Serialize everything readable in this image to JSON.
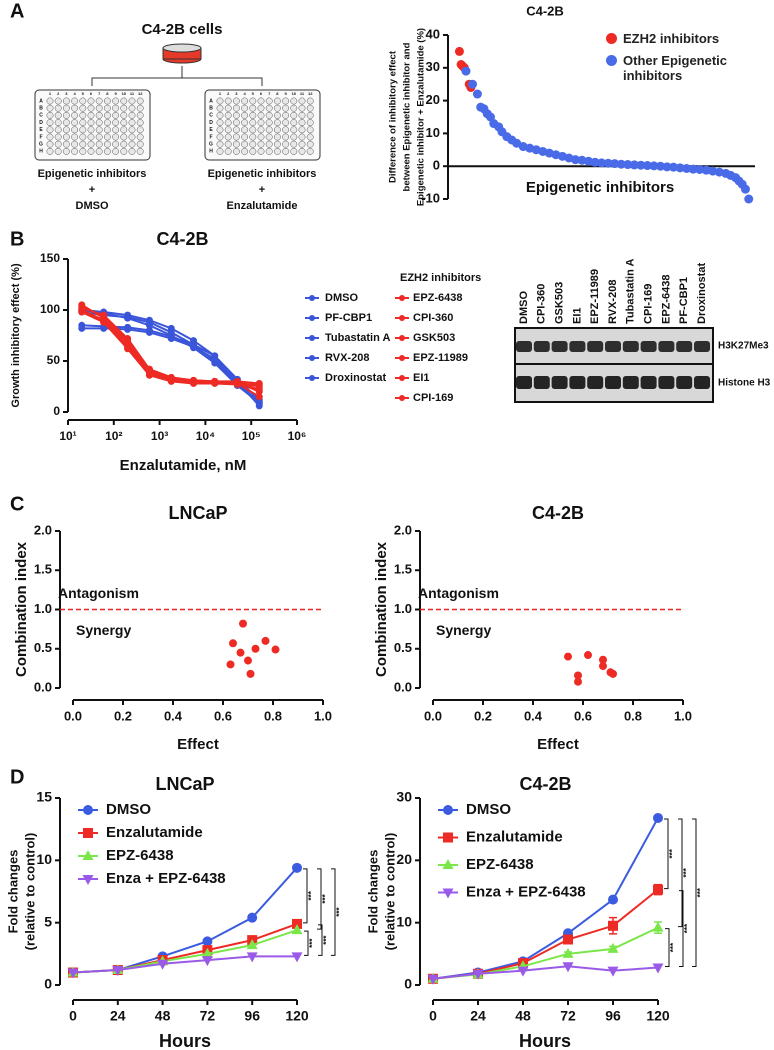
{
  "panel_labels": [
    "A",
    "B",
    "C",
    "D"
  ],
  "diagram": {
    "title": "C4-2B cells",
    "plate": {
      "rows": [
        "A",
        "B",
        "C",
        "D",
        "E",
        "F",
        "G",
        "H"
      ],
      "cols": [
        "1",
        "2",
        "3",
        "4",
        "5",
        "6",
        "7",
        "8",
        "9",
        "10",
        "11",
        "12"
      ]
    },
    "conditions": [
      {
        "line1": "Epigenetic inhibitors",
        "plus": "+",
        "line2": "DMSO"
      },
      {
        "line1": "Epigenetic inhibitors",
        "plus": "+",
        "line2": "Enzalutamide"
      }
    ]
  },
  "blot": {
    "lanes": [
      {
        "label": "DMSO",
        "color": "#2f3fd0"
      },
      {
        "label": "CPI-360",
        "color": "#e0262a"
      },
      {
        "label": "GSK503",
        "color": "#e0262a"
      },
      {
        "label": "EI1",
        "color": "#e0262a"
      },
      {
        "label": "EPZ-11989",
        "color": "#e0262a"
      },
      {
        "label": "RVX-208",
        "color": "#2f3fd0"
      },
      {
        "label": "Tubastatin A",
        "color": "#2f3fd0"
      },
      {
        "label": "CPI-169",
        "color": "#e0262a"
      },
      {
        "label": "EPZ-6438",
        "color": "#e0262a"
      },
      {
        "label": "PF-CBP1",
        "color": "#2f3fd0"
      },
      {
        "label": "Droxinostat",
        "color": "#2f3fd0"
      }
    ],
    "bands": [
      "H3K27Me3",
      "Histone H3"
    ]
  },
  "chart_data": [
    {
      "type": "scatter",
      "title": "C4-2B",
      "ylabel": [
        "Difference of inhibitory effect",
        "between Epigenetic inhibitor and",
        "Epigenetic inhibitor + Enzalutamide (%)"
      ],
      "xlabel": "Epigenetic inhibitors",
      "xlim": [
        -6,
        180
      ],
      "ylim": [
        -10,
        40
      ],
      "yticks": [
        -10,
        0,
        10,
        20,
        30,
        40
      ],
      "series": [
        {
          "name": "EZH2 inhibitors",
          "color": "#ee2a24",
          "x": [
            1,
            2,
            3,
            4,
            7,
            8
          ],
          "values": [
            35,
            31,
            30.5,
            30,
            25,
            24
          ]
        },
        {
          "name": "Other Epigenetic inhibitors",
          "color": "#4a6be8",
          "x": [
            5,
            9,
            12,
            14,
            16,
            18,
            20,
            22,
            25,
            27,
            30,
            33,
            36,
            40,
            44,
            48,
            52,
            56,
            60,
            64,
            68,
            72,
            76,
            80,
            84,
            88,
            92,
            96,
            100,
            104,
            108,
            112,
            116,
            120,
            124,
            128,
            132,
            136,
            140,
            144,
            148,
            152,
            156,
            160,
            164,
            167,
            170,
            172,
            174,
            176,
            178
          ],
          "values": [
            29,
            25,
            22,
            18,
            17.5,
            16,
            15,
            13,
            12,
            10.5,
            9,
            8,
            7,
            6,
            5.5,
            5,
            4.5,
            4,
            3.5,
            3,
            2.5,
            2,
            1.8,
            1.5,
            1.2,
            1,
            0.9,
            0.8,
            0.6,
            0.5,
            0.4,
            0.3,
            0.2,
            0.1,
            0,
            -0.2,
            -0.3,
            -0.5,
            -0.7,
            -0.9,
            -1,
            -1.2,
            -1.5,
            -1.8,
            -2.2,
            -2.8,
            -3.5,
            -4.5,
            -5.5,
            -7,
            -10
          ]
        }
      ]
    },
    {
      "type": "line",
      "title": "C4-2B",
      "ylabel": "Growth inhibitory effect (%)",
      "xlabel": "Enzalutamide, nM",
      "xscale": "log",
      "xlim": [
        10,
        1000000
      ],
      "xticks": [
        {
          "value": 10,
          "label": "10¹"
        },
        {
          "value": 100,
          "label": "10²"
        },
        {
          "value": 1000,
          "label": "10³"
        },
        {
          "value": 10000,
          "label": "10⁴"
        },
        {
          "value": 100000,
          "label": "10⁵"
        },
        {
          "value": 1000000,
          "label": "10⁶"
        }
      ],
      "ylim": [
        0,
        150
      ],
      "yticks": [
        0,
        50,
        100,
        150
      ],
      "legend_title": "EZH2 inhibitors",
      "x": [
        20,
        60,
        200,
        600,
        1800,
        5500,
        16000,
        50000,
        150000
      ],
      "series": [
        {
          "name": "DMSO",
          "color": "#3a55d9",
          "values": [
            100,
            98,
            95,
            90,
            82,
            70,
            55,
            30,
            8
          ]
        },
        {
          "name": "PF-CBP1",
          "color": "#3a55d9",
          "values": [
            98,
            95,
            93,
            88,
            78,
            66,
            50,
            28,
            10
          ]
        },
        {
          "name": "Tubastatin A",
          "color": "#3a55d9",
          "values": [
            85,
            84,
            83,
            80,
            74,
            66,
            55,
            32,
            12
          ]
        },
        {
          "name": "RVX-208",
          "color": "#3a55d9",
          "values": [
            100,
            97,
            92,
            85,
            75,
            63,
            48,
            26,
            9
          ]
        },
        {
          "name": "Droxinostat",
          "color": "#3a55d9",
          "values": [
            82,
            82,
            81,
            78,
            72,
            64,
            52,
            30,
            6
          ]
        },
        {
          "name": "EPZ-6438",
          "color": "#ee2a24",
          "values": [
            105,
            92,
            68,
            40,
            32,
            30,
            29,
            29,
            25
          ]
        },
        {
          "name": "CPI-360",
          "color": "#ee2a24",
          "values": [
            100,
            90,
            65,
            38,
            33,
            31,
            30,
            30,
            28
          ]
        },
        {
          "name": "GSK503",
          "color": "#ee2a24",
          "values": [
            102,
            95,
            72,
            42,
            34,
            31,
            30,
            29,
            20
          ]
        },
        {
          "name": "EPZ-11989",
          "color": "#ee2a24",
          "values": [
            98,
            88,
            62,
            36,
            30,
            28,
            28,
            27,
            27
          ]
        },
        {
          "name": "EI1",
          "color": "#ee2a24",
          "values": [
            104,
            93,
            70,
            40,
            33,
            30,
            30,
            29,
            22
          ]
        },
        {
          "name": "CPI-169",
          "color": "#ee2a24",
          "values": [
            100,
            89,
            64,
            37,
            31,
            29,
            29,
            28,
            15
          ]
        }
      ]
    },
    {
      "type": "scatter",
      "title": "LNCaP",
      "ylabel": "Combination index",
      "xlabel": "Effect",
      "xlim": [
        0,
        1
      ],
      "xticks": [
        {
          "value": 0,
          "label": "0.0"
        },
        {
          "value": 0.2,
          "label": "0.2"
        },
        {
          "value": 0.4,
          "label": "0.4"
        },
        {
          "value": 0.6,
          "label": "0.6"
        },
        {
          "value": 0.8,
          "label": "0.8"
        },
        {
          "value": 1,
          "label": "1.0"
        }
      ],
      "ylim": [
        0,
        2
      ],
      "yticks": [
        {
          "value": 0,
          "label": "0.0"
        },
        {
          "value": 0.5,
          "label": "0.5"
        },
        {
          "value": 1,
          "label": "1.0"
        },
        {
          "value": 1.5,
          "label": "1.5"
        },
        {
          "value": 2,
          "label": "2.0"
        }
      ],
      "reference_line": 1,
      "reference_color": "#e8261d",
      "annotations": [
        "Antagonism",
        "Synergy"
      ],
      "color": "#ee2a24",
      "x": [
        0.68,
        0.64,
        0.77,
        0.81,
        0.67,
        0.73,
        0.63,
        0.7,
        0.71
      ],
      "values": [
        0.82,
        0.57,
        0.6,
        0.49,
        0.45,
        0.5,
        0.3,
        0.35,
        0.18
      ]
    },
    {
      "type": "scatter",
      "title": "C4-2B",
      "ylabel": "Combination index",
      "xlabel": "Effect",
      "xlim": [
        0,
        1
      ],
      "xticks": [
        {
          "value": 0,
          "label": "0.0"
        },
        {
          "value": 0.2,
          "label": "0.2"
        },
        {
          "value": 0.4,
          "label": "0.4"
        },
        {
          "value": 0.6,
          "label": "0.6"
        },
        {
          "value": 0.8,
          "label": "0.8"
        },
        {
          "value": 1,
          "label": "1.0"
        }
      ],
      "ylim": [
        0,
        2
      ],
      "yticks": [
        {
          "value": 0,
          "label": "0.0"
        },
        {
          "value": 0.5,
          "label": "0.5"
        },
        {
          "value": 1,
          "label": "1.0"
        },
        {
          "value": 1.5,
          "label": "1.5"
        },
        {
          "value": 2,
          "label": "2.0"
        }
      ],
      "reference_line": 1,
      "reference_color": "#e8261d",
      "annotations": [
        "Antagonism",
        "Synergy"
      ],
      "color": "#ee2a24",
      "x": [
        0.54,
        0.62,
        0.58,
        0.58,
        0.68,
        0.68,
        0.71,
        0.72
      ],
      "values": [
        0.4,
        0.42,
        0.16,
        0.08,
        0.36,
        0.28,
        0.2,
        0.18
      ]
    },
    {
      "type": "line",
      "title": "LNCaP",
      "ylabel": [
        "Fold changes",
        "(relative to control)"
      ],
      "xlabel": "Hours",
      "xlim": [
        0,
        120
      ],
      "xticks": [
        0,
        24,
        48,
        72,
        96,
        120
      ],
      "ylim": [
        0,
        15
      ],
      "yticks": [
        0,
        5,
        10,
        15
      ],
      "x": [
        0,
        24,
        48,
        72,
        96,
        120
      ],
      "series": [
        {
          "name": "DMSO",
          "color": "#3b5be0",
          "marker": "circle",
          "values": [
            1,
            1.2,
            2.3,
            3.5,
            5.4,
            9.4
          ]
        },
        {
          "name": "Enzalutamide",
          "color": "#ee2a24",
          "marker": "square",
          "values": [
            1,
            1.2,
            2.0,
            2.8,
            3.6,
            4.9
          ]
        },
        {
          "name": "EPZ-6438",
          "color": "#7be64a",
          "marker": "triangle",
          "values": [
            1,
            1.2,
            1.9,
            2.5,
            3.2,
            4.4
          ]
        },
        {
          "name": "Enza + EPZ-6438",
          "color": "#9a5ae8",
          "marker": "triangle-down",
          "values": [
            1,
            1.2,
            1.7,
            2.0,
            2.3,
            2.3
          ]
        }
      ],
      "significance": [
        {
          "pair": [
            0,
            1
          ],
          "label": "***"
        },
        {
          "pair": [
            2,
            3
          ],
          "label": "***"
        },
        {
          "pair": [
            0,
            2
          ],
          "label": "***"
        },
        {
          "pair": [
            1,
            3
          ],
          "label": "***"
        },
        {
          "pair": [
            0,
            3
          ],
          "label": "***"
        }
      ]
    },
    {
      "type": "line",
      "title": "C4-2B",
      "ylabel": [
        "Fold changes",
        "(relative to control)"
      ],
      "xlabel": "Hours",
      "xlim": [
        0,
        120
      ],
      "xticks": [
        0,
        24,
        48,
        72,
        96,
        120
      ],
      "ylim": [
        0,
        30
      ],
      "yticks": [
        0,
        10,
        20,
        30
      ],
      "x": [
        0,
        24,
        48,
        72,
        96,
        120
      ],
      "series": [
        {
          "name": "DMSO",
          "color": "#3b5be0",
          "marker": "circle",
          "values": [
            1,
            2,
            3.8,
            8.3,
            13.7,
            26.8
          ]
        },
        {
          "name": "Enzalutamide",
          "color": "#ee2a24",
          "marker": "square",
          "values": [
            1,
            1.8,
            3.5,
            7.3,
            9.5,
            15.3
          ],
          "errors": [
            0,
            0,
            0,
            0.6,
            1.3,
            0.8
          ]
        },
        {
          "name": "EPZ-6438",
          "color": "#7be64a",
          "marker": "triangle",
          "values": [
            1,
            1.7,
            3.0,
            5.0,
            5.8,
            9.2
          ],
          "errors": [
            0,
            0,
            0,
            0.3,
            0.4,
            0.9
          ]
        },
        {
          "name": "Enza + EPZ-6438",
          "color": "#9a5ae8",
          "marker": "triangle-down",
          "values": [
            1,
            1.8,
            2.3,
            3.0,
            2.3,
            2.8
          ]
        }
      ],
      "significance": [
        {
          "pair": [
            0,
            1
          ],
          "label": "***"
        },
        {
          "pair": [
            2,
            3
          ],
          "label": "***"
        },
        {
          "pair": [
            0,
            2
          ],
          "label": "***"
        },
        {
          "pair": [
            1,
            3
          ],
          "label": "***"
        },
        {
          "pair": [
            0,
            3
          ],
          "label": "***"
        }
      ]
    }
  ]
}
